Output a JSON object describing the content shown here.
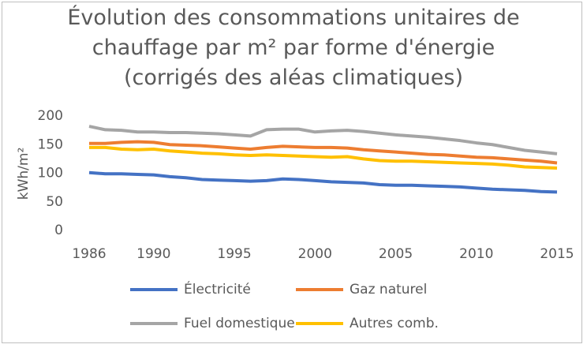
{
  "chart_data": {
    "type": "line",
    "title": "Évolution des consommations unitaires de chauffage par m² par forme d'énergie (corrigés des aléas climatiques)",
    "y_label": "kWh/m²",
    "x": [
      1986,
      1987,
      1988,
      1989,
      1990,
      1991,
      1992,
      1993,
      1994,
      1995,
      1996,
      1997,
      1998,
      1999,
      2000,
      2001,
      2002,
      2003,
      2004,
      2005,
      2006,
      2007,
      2008,
      2009,
      2010,
      2011,
      2012,
      2013,
      2014,
      2015
    ],
    "xlim": [
      1986,
      2015
    ],
    "xticks": [
      1986,
      1990,
      1995,
      2000,
      2005,
      2010,
      2015
    ],
    "ylim": [
      0,
      200
    ],
    "yticks": [
      0,
      50,
      100,
      150,
      200
    ],
    "grid": false,
    "legend": "bottom",
    "series": [
      {
        "name": "Électricité",
        "color": "#4472c4",
        "values": [
          101,
          99,
          99,
          98,
          97,
          94,
          92,
          89,
          88,
          87,
          86,
          87,
          90,
          89,
          87,
          85,
          84,
          83,
          80,
          79,
          79,
          78,
          77,
          76,
          74,
          72,
          71,
          70,
          68,
          67
        ]
      },
      {
        "name": "Gaz naturel",
        "color": "#ed7d31",
        "values": [
          152,
          152,
          154,
          155,
          154,
          150,
          149,
          148,
          146,
          144,
          142,
          145,
          147,
          146,
          145,
          145,
          144,
          141,
          139,
          137,
          135,
          133,
          132,
          130,
          128,
          127,
          125,
          123,
          121,
          118
        ]
      },
      {
        "name": "Fuel domestique",
        "color": "#a5a5a5",
        "values": [
          182,
          176,
          175,
          172,
          172,
          171,
          171,
          170,
          169,
          167,
          165,
          176,
          177,
          177,
          172,
          174,
          175,
          173,
          170,
          167,
          165,
          163,
          160,
          157,
          153,
          150,
          145,
          140,
          137,
          134
        ]
      },
      {
        "name": "Autres comb.",
        "color": "#ffc000",
        "values": [
          145,
          145,
          142,
          141,
          142,
          139,
          137,
          135,
          134,
          132,
          131,
          132,
          131,
          130,
          129,
          128,
          129,
          125,
          122,
          121,
          121,
          120,
          119,
          118,
          117,
          116,
          114,
          111,
          110,
          109
        ]
      }
    ]
  }
}
